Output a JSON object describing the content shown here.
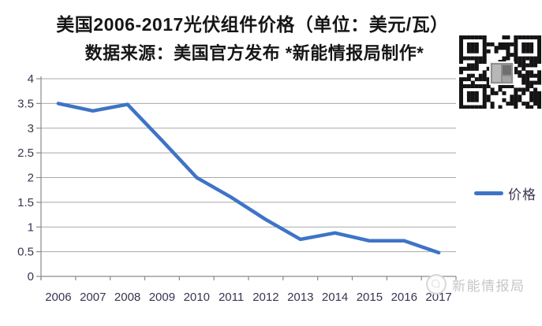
{
  "chart_data": {
    "type": "line",
    "title": "美国2006-2017光伏组件价格（单位：美元/瓦）",
    "subtitle": "数据来源：美国官方发布  *新能情报局制作*",
    "categories": [
      "2006",
      "2007",
      "2008",
      "2009",
      "2010",
      "2011",
      "2012",
      "2013",
      "2014",
      "2015",
      "2016",
      "2017"
    ],
    "series": [
      {
        "name": "价格",
        "color": "#3E74C6",
        "values": [
          3.5,
          3.35,
          3.48,
          2.75,
          2.0,
          1.6,
          1.15,
          0.75,
          0.88,
          0.72,
          0.72,
          0.48
        ]
      }
    ],
    "xlabel": "",
    "ylabel": "",
    "ylim": [
      0,
      4
    ],
    "ytick_labels": [
      "0",
      "0.5",
      "1",
      "1.5",
      "2",
      "2.5",
      "3",
      "3.5",
      "4"
    ],
    "grid": true,
    "legend_position": "right"
  },
  "legend": {
    "label": "价格"
  },
  "watermark": {
    "text": "新能情报局",
    "logo_icon": "circular-stamp"
  },
  "qr": {
    "icon": "qr-code"
  },
  "colors": {
    "line": "#3E74C6",
    "grid": "#a8a8a8",
    "axis": "#8a8a8a",
    "tick_label": "#3b3352",
    "title": "#161616",
    "watermark": "#c3c3c3"
  }
}
